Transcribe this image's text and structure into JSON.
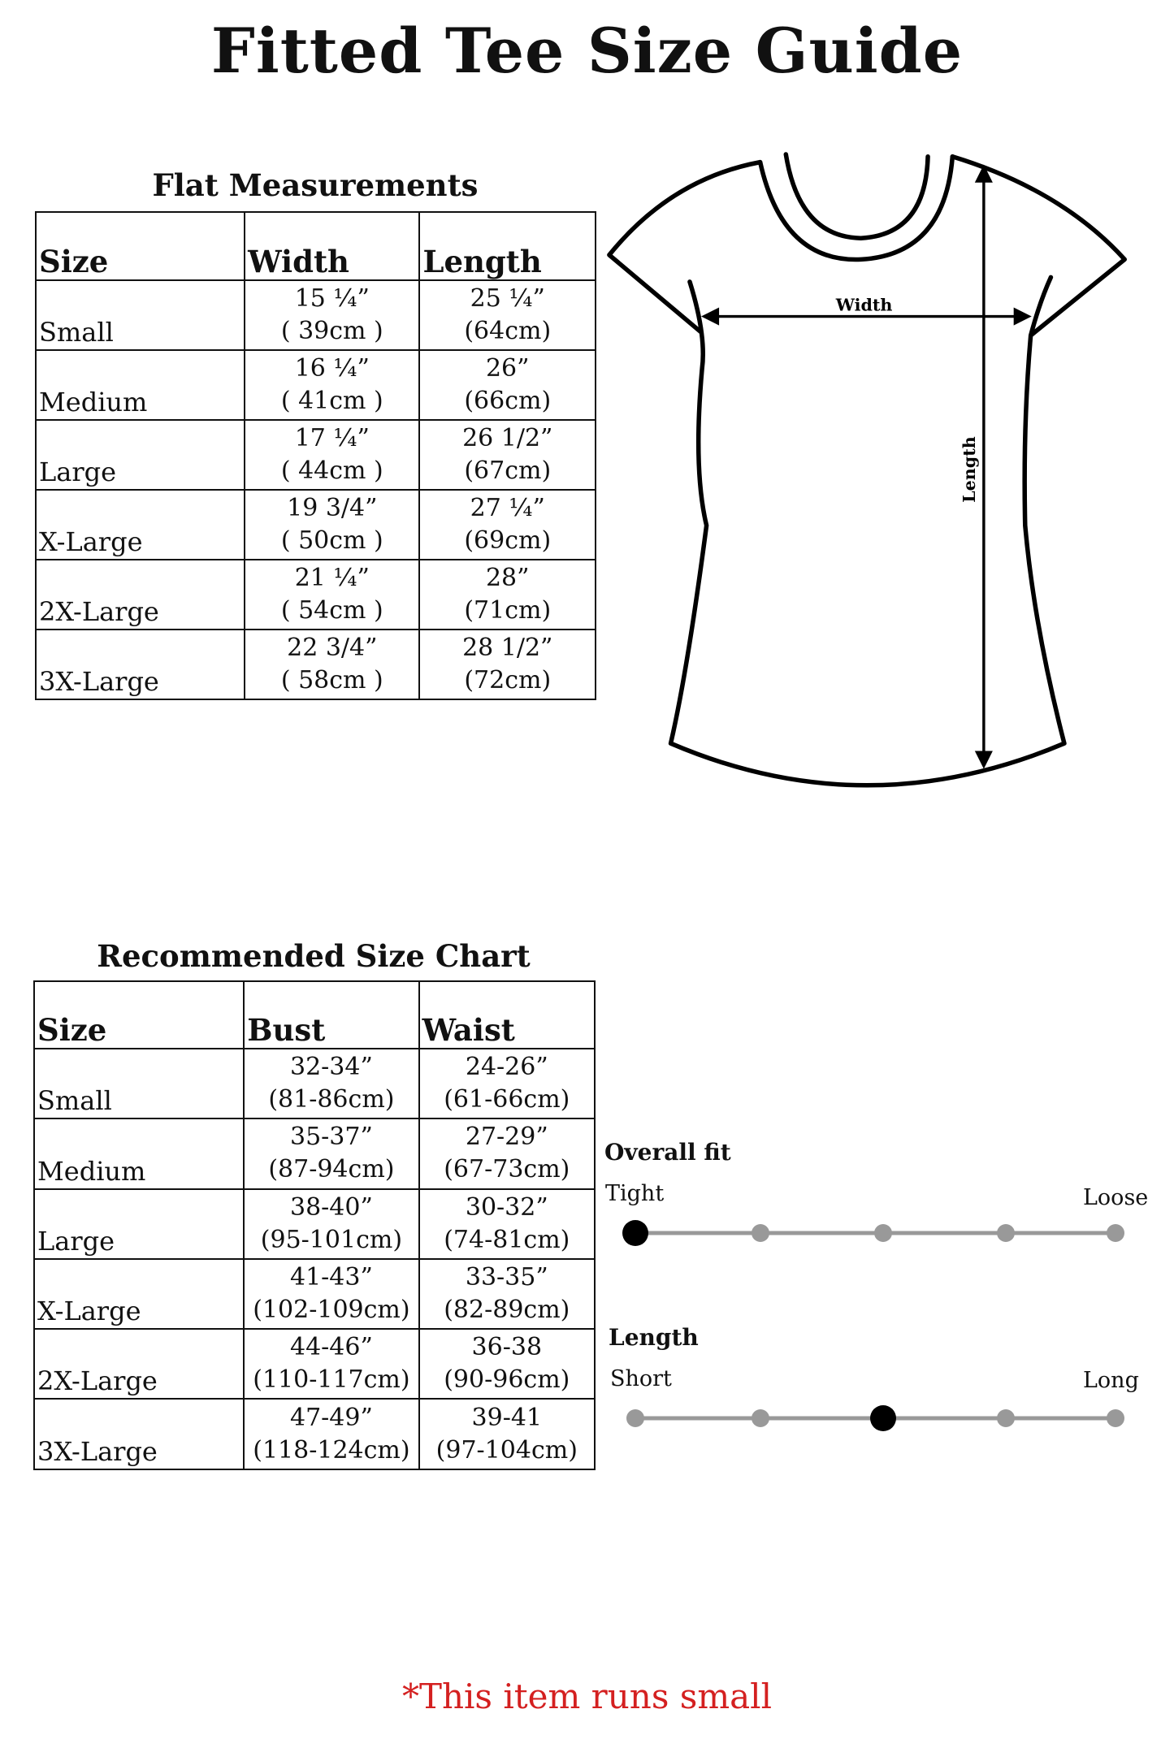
{
  "title": "Fitted Tee Size Guide",
  "flat": {
    "title": "Flat Measurements",
    "headers": [
      "Size",
      "Width",
      "Length"
    ],
    "rows": [
      {
        "size": "Small",
        "width_in": "15 ¼”",
        "width_cm": "( 39cm )",
        "length_in": "25 ¼”",
        "length_cm": "(64cm)"
      },
      {
        "size": "Medium",
        "width_in": "16 ¼”",
        "width_cm": "( 41cm )",
        "length_in": "26”",
        "length_cm": "(66cm)"
      },
      {
        "size": "Large",
        "width_in": "17 ¼”",
        "width_cm": "( 44cm )",
        "length_in": "26 1/2”",
        "length_cm": "(67cm)"
      },
      {
        "size": "X-Large",
        "width_in": "19 3/4”",
        "width_cm": "( 50cm )",
        "length_in": "27 ¼”",
        "length_cm": "(69cm)"
      },
      {
        "size": "2X-Large",
        "width_in": "21 ¼”",
        "width_cm": "( 54cm )",
        "length_in": "28”",
        "length_cm": "(71cm)"
      },
      {
        "size": "3X-Large",
        "width_in": "22 3/4”",
        "width_cm": "( 58cm )",
        "length_in": "28 1/2”",
        "length_cm": "(72cm)"
      }
    ]
  },
  "diagram": {
    "width_label": "Width",
    "length_label": "Length"
  },
  "recommended": {
    "title": "Recommended Size Chart",
    "headers": [
      "Size",
      "Bust",
      "Waist"
    ],
    "rows": [
      {
        "size": "Small",
        "bust_in": "32-34”",
        "bust_cm": "(81-86cm)",
        "waist_in": "24-26”",
        "waist_cm": "(61-66cm)"
      },
      {
        "size": "Medium",
        "bust_in": "35-37”",
        "bust_cm": "(87-94cm)",
        "waist_in": "27-29”",
        "waist_cm": "(67-73cm)"
      },
      {
        "size": "Large",
        "bust_in": "38-40”",
        "bust_cm": "(95-101cm)",
        "waist_in": "30-32”",
        "waist_cm": "(74-81cm)"
      },
      {
        "size": "X-Large",
        "bust_in": "41-43”",
        "bust_cm": "(102-109cm)",
        "waist_in": "33-35”",
        "waist_cm": "(82-89cm)"
      },
      {
        "size": "2X-Large",
        "bust_in": "44-46”",
        "bust_cm": "(110-117cm)",
        "waist_in": "36-38",
        "waist_cm": "(90-96cm)"
      },
      {
        "size": "3X-Large",
        "bust_in": "47-49”",
        "bust_cm": "(118-124cm)",
        "waist_in": "39-41",
        "waist_cm": "(97-104cm)"
      }
    ]
  },
  "fit": {
    "overall": {
      "label": "Overall fit",
      "min_label": "Tight",
      "max_label": "Loose",
      "steps": 5,
      "selected": 1
    },
    "length": {
      "label": "Length",
      "min_label": "Short",
      "max_label": "Long",
      "steps": 5,
      "selected": 3
    },
    "colors": {
      "track": "#999999",
      "selected": "#000000"
    }
  },
  "note": "*This item runs small",
  "colors": {
    "note": "#d42020"
  }
}
